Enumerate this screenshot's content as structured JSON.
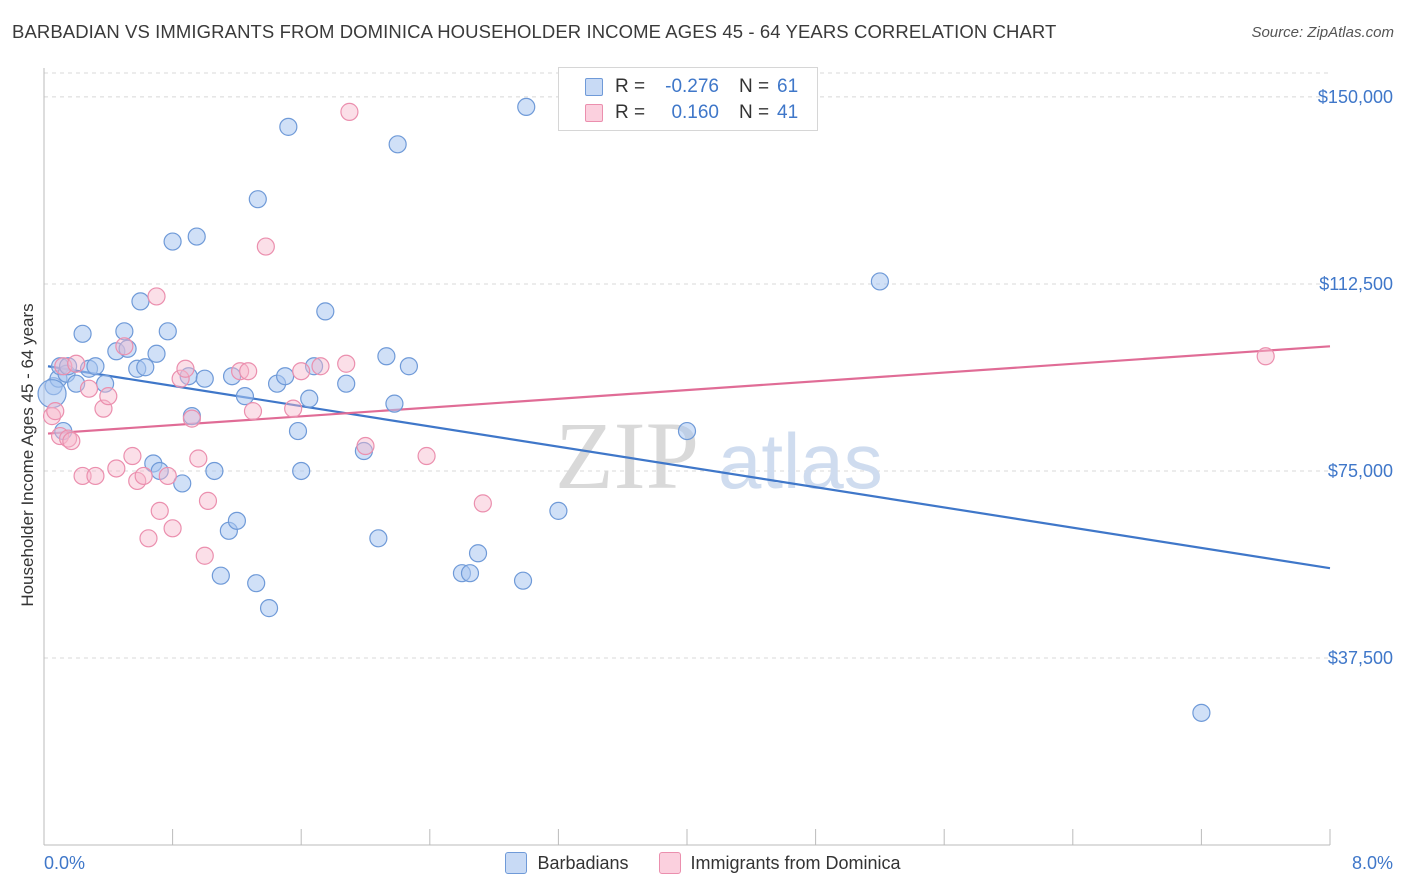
{
  "title": "BARBADIAN VS IMMIGRANTS FROM DOMINICA HOUSEHOLDER INCOME AGES 45 - 64 YEARS CORRELATION CHART",
  "source": "Source: ZipAtlas.com",
  "watermark": {
    "zip": "ZIP",
    "atlas": "atlas"
  },
  "legend": {
    "rows": [
      {
        "r_label": "R =",
        "r_value": "-0.276",
        "n_label": "N =",
        "n_value": "61"
      },
      {
        "r_label": "R =",
        "r_value": "0.160",
        "n_label": "N =",
        "n_value": "41"
      }
    ]
  },
  "bottom_legend": {
    "series1": "Barbadians",
    "series2": "Immigrants from Dominica"
  },
  "colors": {
    "blue": "#3f77c9",
    "blue_fill": "#aac7f0",
    "pink": "#e06c96",
    "pink_fill": "#f6b8cc",
    "grid": "#d8d8d8"
  },
  "chart_data": {
    "type": "scatter",
    "title": "BARBADIAN VS IMMIGRANTS FROM DOMINICA HOUSEHOLDER INCOME AGES 45 - 64 YEARS CORRELATION CHART",
    "xlabel": "",
    "ylabel": "Householder Income Ages 45 - 64 years",
    "xlim": [
      0,
      8
    ],
    "ylim": [
      0,
      155000
    ],
    "x_tick_labels": [
      "0.0%",
      "8.0%"
    ],
    "y_tick_labels": [
      "$150,000",
      "$112,500",
      "$75,000",
      "$37,500"
    ],
    "y_ticks": [
      150000,
      112500,
      75000,
      37500
    ],
    "grid": true,
    "series": [
      {
        "name": "Barbadians",
        "color": "#3f77c9",
        "points": [
          [
            0.06,
            92000
          ],
          [
            0.09,
            93500
          ],
          [
            0.1,
            96000
          ],
          [
            0.12,
            83000
          ],
          [
            0.14,
            94500
          ],
          [
            0.15,
            96000
          ],
          [
            0.2,
            92500
          ],
          [
            0.24,
            102500
          ],
          [
            0.28,
            95500
          ],
          [
            0.32,
            96000
          ],
          [
            0.38,
            92500
          ],
          [
            0.45,
            99000
          ],
          [
            0.5,
            103000
          ],
          [
            0.52,
            99500
          ],
          [
            0.58,
            95500
          ],
          [
            0.6,
            109000
          ],
          [
            0.63,
            95800
          ],
          [
            0.68,
            76500
          ],
          [
            0.7,
            98500
          ],
          [
            0.72,
            75000
          ],
          [
            0.77,
            103000
          ],
          [
            0.8,
            121000
          ],
          [
            0.86,
            72500
          ],
          [
            0.9,
            94000
          ],
          [
            0.92,
            86000
          ],
          [
            0.95,
            122000
          ],
          [
            1.0,
            93500
          ],
          [
            1.06,
            75000
          ],
          [
            1.1,
            54000
          ],
          [
            1.15,
            63000
          ],
          [
            1.17,
            94000
          ],
          [
            1.2,
            65000
          ],
          [
            1.25,
            90000
          ],
          [
            1.32,
            52500
          ],
          [
            1.33,
            129500
          ],
          [
            1.4,
            47500
          ],
          [
            1.45,
            92500
          ],
          [
            1.5,
            94000
          ],
          [
            1.52,
            144000
          ],
          [
            1.58,
            83000
          ],
          [
            1.6,
            75000
          ],
          [
            1.65,
            89500
          ],
          [
            1.68,
            96000
          ],
          [
            1.75,
            107000
          ],
          [
            1.88,
            92500
          ],
          [
            1.99,
            79000
          ],
          [
            2.08,
            61500
          ],
          [
            2.13,
            98000
          ],
          [
            2.18,
            88500
          ],
          [
            2.2,
            140500
          ],
          [
            2.27,
            96000
          ],
          [
            2.6,
            54500
          ],
          [
            2.65,
            54500
          ],
          [
            2.7,
            58500
          ],
          [
            2.98,
            53000
          ],
          [
            3.0,
            148000
          ],
          [
            3.2,
            67000
          ],
          [
            4.0,
            83000
          ],
          [
            5.2,
            113000
          ],
          [
            7.2,
            26500
          ],
          [
            0.05,
            90500
          ]
        ]
      },
      {
        "name": "Immigrants from Dominica",
        "color": "#e06c96",
        "points": [
          [
            0.05,
            86000
          ],
          [
            0.07,
            87000
          ],
          [
            0.1,
            82000
          ],
          [
            0.12,
            96000
          ],
          [
            0.15,
            81500
          ],
          [
            0.17,
            81000
          ],
          [
            0.2,
            96500
          ],
          [
            0.24,
            74000
          ],
          [
            0.28,
            91500
          ],
          [
            0.32,
            74000
          ],
          [
            0.37,
            87500
          ],
          [
            0.4,
            90000
          ],
          [
            0.45,
            75500
          ],
          [
            0.5,
            100000
          ],
          [
            0.55,
            78000
          ],
          [
            0.58,
            73000
          ],
          [
            0.62,
            74000
          ],
          [
            0.65,
            61500
          ],
          [
            0.7,
            110000
          ],
          [
            0.72,
            67000
          ],
          [
            0.77,
            74000
          ],
          [
            0.8,
            63500
          ],
          [
            0.85,
            93500
          ],
          [
            0.88,
            95500
          ],
          [
            0.92,
            85500
          ],
          [
            0.96,
            77500
          ],
          [
            1.0,
            58000
          ],
          [
            1.02,
            69000
          ],
          [
            1.22,
            95000
          ],
          [
            1.27,
            95000
          ],
          [
            1.3,
            87000
          ],
          [
            1.38,
            120000
          ],
          [
            1.55,
            87500
          ],
          [
            1.6,
            95000
          ],
          [
            1.72,
            96000
          ],
          [
            1.88,
            96500
          ],
          [
            1.9,
            147000
          ],
          [
            2.0,
            80000
          ],
          [
            2.38,
            78000
          ],
          [
            2.73,
            68500
          ],
          [
            7.6,
            98000
          ]
        ]
      }
    ],
    "trendlines": [
      {
        "series": "Barbadians",
        "x": [
          0,
          8
        ],
        "y": [
          96000,
          55500
        ]
      },
      {
        "series": "Immigrants from Dominica",
        "x": [
          0,
          8
        ],
        "y": [
          82500,
          100000
        ]
      }
    ]
  }
}
